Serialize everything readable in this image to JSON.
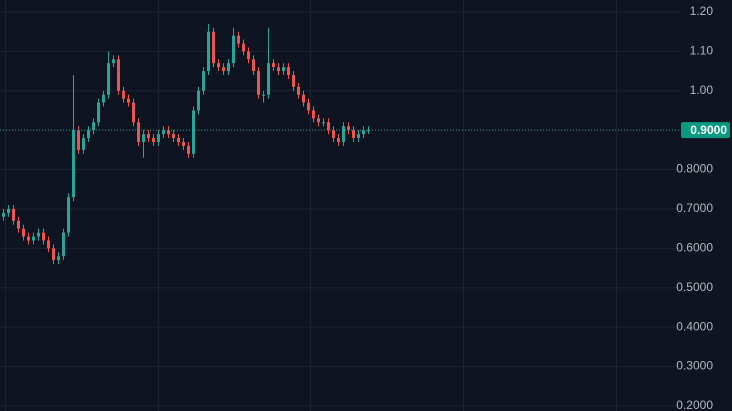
{
  "chart_data": {
    "type": "candlestick",
    "ylim": [
      0.187,
      1.2305
    ],
    "yticks": [
      {
        "value": 1.2,
        "label": "1.20"
      },
      {
        "value": 1.1,
        "label": "1.10"
      },
      {
        "value": 1.0,
        "label": "1.00"
      },
      {
        "value": 0.8,
        "label": "0.8000"
      },
      {
        "value": 0.7,
        "label": "0.7000"
      },
      {
        "value": 0.6,
        "label": "0.6000"
      },
      {
        "value": 0.5,
        "label": "0.5000"
      },
      {
        "value": 0.4,
        "label": "0.4000"
      },
      {
        "value": 0.3,
        "label": "0.3000"
      },
      {
        "value": 0.2,
        "label": "0.2000"
      }
    ],
    "grid": true,
    "up_color": "#26a69a",
    "down_color": "#ef5350",
    "last_price": {
      "value": 0.9,
      "label": "0.9000"
    },
    "open": [
      0.68,
      0.69,
      0.7,
      0.67,
      0.65,
      0.63,
      0.62,
      0.63,
      0.64,
      0.62,
      0.6,
      0.57,
      0.58,
      0.64,
      0.73,
      0.9,
      0.85,
      0.88,
      0.9,
      0.92,
      0.97,
      0.99,
      1.07,
      1.08,
      1.0,
      0.98,
      0.97,
      0.92,
      0.87,
      0.89,
      0.88,
      0.87,
      0.89,
      0.9,
      0.89,
      0.88,
      0.87,
      0.86,
      0.84,
      0.95,
      1.0,
      1.05,
      1.15,
      1.07,
      1.06,
      1.05,
      1.07,
      1.14,
      1.12,
      1.1,
      1.08,
      1.05,
      0.99,
      0.99,
      1.07,
      1.06,
      1.05,
      1.06,
      1.04,
      1.01,
      0.99,
      0.97,
      0.95,
      0.93,
      0.92,
      0.92,
      0.9,
      0.88,
      0.87,
      0.91,
      0.9,
      0.88,
      0.89,
      0.9
    ],
    "high": [
      0.7,
      0.71,
      0.71,
      0.68,
      0.66,
      0.64,
      0.64,
      0.65,
      0.65,
      0.63,
      0.61,
      0.59,
      0.65,
      0.74,
      1.04,
      0.91,
      0.89,
      0.91,
      0.93,
      0.98,
      1.0,
      1.1,
      1.09,
      1.09,
      1.01,
      0.99,
      0.98,
      0.93,
      0.9,
      0.9,
      0.89,
      0.9,
      0.91,
      0.91,
      0.9,
      0.89,
      0.88,
      0.87,
      0.96,
      1.01,
      1.06,
      1.17,
      1.16,
      1.08,
      1.07,
      1.08,
      1.16,
      1.15,
      1.13,
      1.11,
      1.09,
      1.06,
      1.0,
      1.16,
      1.08,
      1.07,
      1.07,
      1.07,
      1.05,
      1.02,
      1.0,
      0.98,
      0.96,
      0.94,
      0.93,
      0.93,
      0.91,
      0.89,
      0.92,
      0.92,
      0.91,
      0.9,
      0.91,
      0.91
    ],
    "low": [
      0.67,
      0.68,
      0.66,
      0.64,
      0.62,
      0.61,
      0.61,
      0.62,
      0.61,
      0.59,
      0.56,
      0.56,
      0.57,
      0.63,
      0.72,
      0.84,
      0.84,
      0.87,
      0.89,
      0.91,
      0.96,
      0.98,
      1.06,
      0.99,
      0.97,
      0.96,
      0.91,
      0.86,
      0.83,
      0.87,
      0.86,
      0.86,
      0.88,
      0.88,
      0.87,
      0.86,
      0.85,
      0.83,
      0.83,
      0.94,
      0.99,
      1.04,
      1.06,
      1.05,
      1.04,
      1.04,
      1.06,
      1.11,
      1.09,
      1.07,
      1.04,
      0.98,
      0.97,
      0.98,
      1.05,
      1.04,
      1.04,
      1.03,
      1.0,
      0.98,
      0.96,
      0.94,
      0.92,
      0.91,
      0.91,
      0.89,
      0.87,
      0.86,
      0.86,
      0.89,
      0.87,
      0.87,
      0.88,
      0.89
    ],
    "close": [
      0.69,
      0.7,
      0.67,
      0.65,
      0.63,
      0.62,
      0.63,
      0.64,
      0.62,
      0.6,
      0.57,
      0.58,
      0.64,
      0.73,
      0.9,
      0.85,
      0.88,
      0.9,
      0.92,
      0.97,
      0.99,
      1.07,
      1.08,
      1.0,
      0.98,
      0.97,
      0.92,
      0.87,
      0.89,
      0.88,
      0.87,
      0.89,
      0.9,
      0.89,
      0.88,
      0.87,
      0.86,
      0.84,
      0.95,
      1.0,
      1.05,
      1.15,
      1.07,
      1.06,
      1.05,
      1.07,
      1.14,
      1.12,
      1.1,
      1.08,
      1.05,
      0.99,
      0.99,
      1.07,
      1.06,
      1.05,
      1.06,
      1.04,
      1.01,
      0.99,
      0.97,
      0.95,
      0.93,
      0.92,
      0.92,
      0.9,
      0.88,
      0.87,
      0.91,
      0.9,
      0.88,
      0.89,
      0.9,
      0.9
    ]
  }
}
